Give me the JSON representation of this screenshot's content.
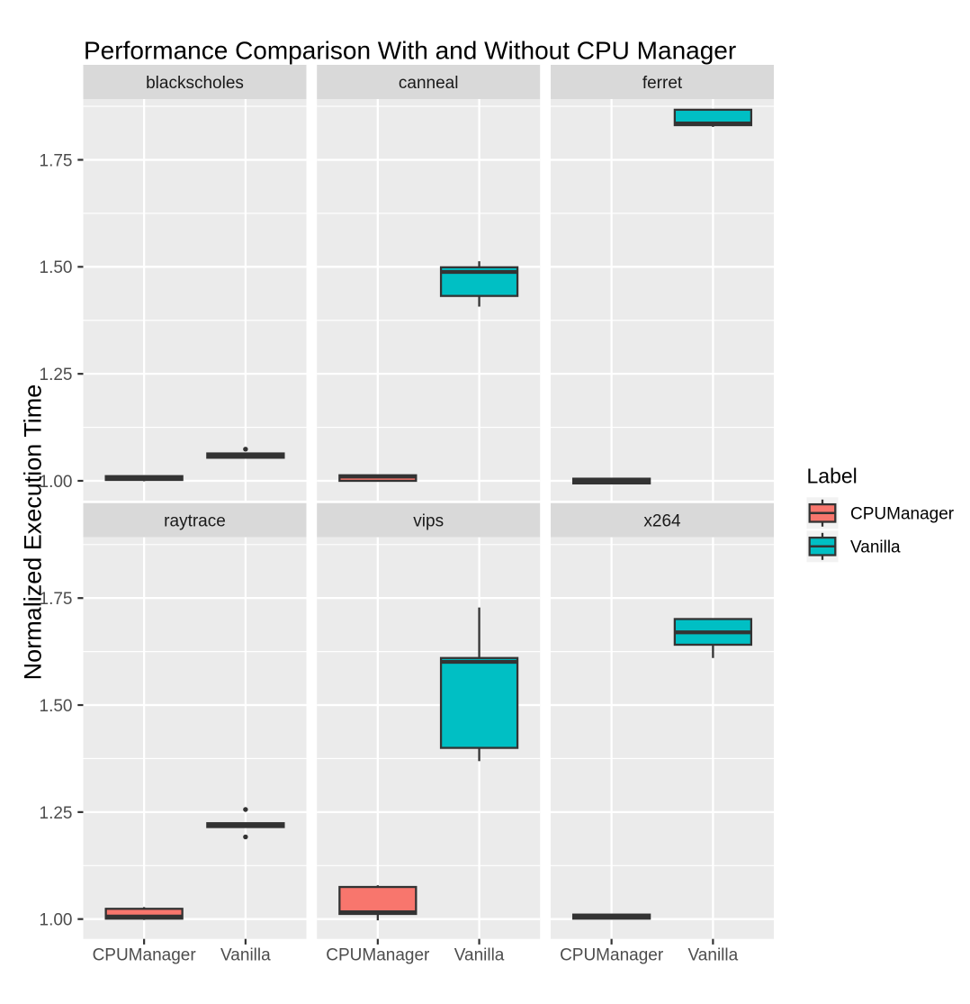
{
  "chart_data": {
    "type": "boxplot",
    "title": "Performance Comparison With and Without CPU Manager",
    "ylabel": "Normalized Execution Time",
    "xlabel": "",
    "categories": [
      "CPUManager",
      "Vanilla"
    ],
    "y_ticks": [
      {
        "value": 1.0,
        "label": "1.00"
      },
      {
        "value": 1.25,
        "label": "1.25"
      },
      {
        "value": 1.5,
        "label": "1.50"
      },
      {
        "value": 1.75,
        "label": "1.75"
      }
    ],
    "y_minor_ticks": [
      1.125,
      1.375,
      1.625,
      1.875
    ],
    "ylim": [
      0.9537,
      1.892
    ],
    "grid": true,
    "legend": {
      "title": "Label",
      "position": "right",
      "entries": [
        {
          "label": "CPUManager",
          "color": "#F8766D"
        },
        {
          "label": "Vanilla",
          "color": "#00BFC4"
        }
      ]
    },
    "facets": [
      {
        "name": "blackscholes",
        "boxes": [
          {
            "group": "CPUManager",
            "low": 0.999,
            "q1": 1.002,
            "median": 1.006,
            "q3": 1.011,
            "high": 1.013,
            "outliers": []
          },
          {
            "group": "Vanilla",
            "low": 1.053,
            "q1": 1.054,
            "median": 1.059,
            "q3": 1.064,
            "high": 1.065,
            "outliers": [
              1.074
            ]
          }
        ]
      },
      {
        "name": "canneal",
        "boxes": [
          {
            "group": "CPUManager",
            "low": 0.999,
            "q1": 1.0,
            "median": 1.01,
            "q3": 1.013,
            "high": 1.014,
            "outliers": []
          },
          {
            "group": "Vanilla",
            "low": 1.407,
            "q1": 1.432,
            "median": 1.488,
            "q3": 1.499,
            "high": 1.513,
            "outliers": []
          }
        ]
      },
      {
        "name": "ferret",
        "boxes": [
          {
            "group": "CPUManager",
            "low": 0.992,
            "q1": 0.994,
            "median": 1.0,
            "q3": 1.005,
            "high": 1.006,
            "outliers": []
          },
          {
            "group": "Vanilla",
            "low": 1.827,
            "q1": 1.831,
            "median": 1.835,
            "q3": 1.867,
            "high": 1.867,
            "outliers": []
          }
        ]
      },
      {
        "name": "raytrace",
        "boxes": [
          {
            "group": "CPUManager",
            "low": 0.998,
            "q1": 1.001,
            "median": 1.006,
            "q3": 1.024,
            "high": 1.028,
            "outliers": []
          },
          {
            "group": "Vanilla",
            "low": 1.214,
            "q1": 1.215,
            "median": 1.219,
            "q3": 1.224,
            "high": 1.225,
            "outliers": [
              1.256,
              1.192
            ]
          }
        ]
      },
      {
        "name": "vips",
        "boxes": [
          {
            "group": "CPUManager",
            "low": 0.997,
            "q1": 1.012,
            "median": 1.016,
            "q3": 1.075,
            "high": 1.079,
            "outliers": []
          },
          {
            "group": "Vanilla",
            "low": 1.369,
            "q1": 1.4,
            "median": 1.601,
            "q3": 1.61,
            "high": 1.728,
            "outliers": []
          }
        ]
      },
      {
        "name": "x264",
        "boxes": [
          {
            "group": "CPUManager",
            "low": 0.9995,
            "q1": 1.001,
            "median": 1.006,
            "q3": 1.0105,
            "high": 1.012,
            "outliers": []
          },
          {
            "group": "Vanilla",
            "low": 1.61,
            "q1": 1.641,
            "median": 1.67,
            "q3": 1.701,
            "high": 1.701,
            "outliers": []
          }
        ]
      }
    ],
    "style": {
      "background": "#FFFFFF",
      "panel_bg": "#EBEBEB",
      "strip_bg": "#D9D9D9",
      "grid_color": "#FFFFFF",
      "box_stroke": "#333333",
      "outlier_color": "#333333",
      "axis_text_color": "#4D4D4D",
      "strip_text_color": "#1A1A1A",
      "tick_color": "#333333",
      "legend_key_bg": "#F2F2F2"
    }
  }
}
